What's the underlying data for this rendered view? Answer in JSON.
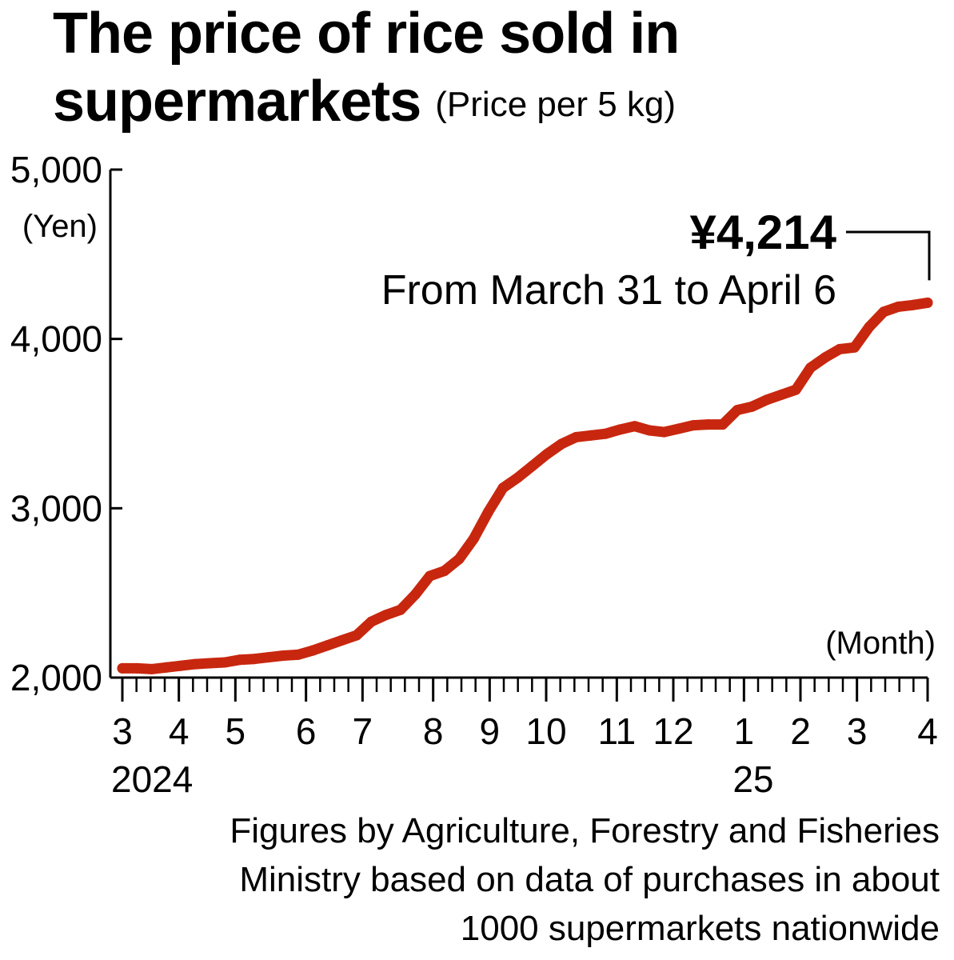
{
  "title": {
    "main_line1": "The price of rice sold in",
    "main_line2": "supermarkets",
    "subtitle": "(Price per 5 kg)"
  },
  "annotation": {
    "value": "¥4,214",
    "period": "From March 31 to April 6"
  },
  "source": {
    "line1": "Figures by Agriculture, Forestry and Fisheries",
    "line2": "Ministry based on data of purchases in about",
    "line3": "1000 supermarkets nationwide"
  },
  "colors": {
    "line": "#c8270f",
    "axis": "#000000"
  },
  "chart_data": {
    "type": "line",
    "title": "The price of rice sold in supermarkets",
    "subtitle": "(Price per 5 kg)",
    "ylabel": "(Yen)",
    "xlabel": "(Month)",
    "ylim": [
      2000,
      5000
    ],
    "yticks": [
      2000,
      3000,
      4000,
      5000
    ],
    "ytick_labels": [
      "2,000",
      "3,000",
      "4,000",
      "5,000"
    ],
    "grid": false,
    "month_ticks": [
      {
        "label": "3",
        "week": 0
      },
      {
        "label": "4",
        "week": 4
      },
      {
        "label": "5",
        "week": 8
      },
      {
        "label": "6",
        "week": 13
      },
      {
        "label": "7",
        "week": 17
      },
      {
        "label": "8",
        "week": 22
      },
      {
        "label": "9",
        "week": 26
      },
      {
        "label": "10",
        "week": 30
      },
      {
        "label": "11",
        "week": 35
      },
      {
        "label": "12",
        "week": 39
      },
      {
        "label": "1",
        "week": 44
      },
      {
        "label": "2",
        "week": 48
      },
      {
        "label": "3",
        "week": 52
      },
      {
        "label": "4",
        "week": 57
      }
    ],
    "year_labels": [
      {
        "label": "2024",
        "week": 0
      },
      {
        "label": "25",
        "week": 44
      }
    ],
    "series": [
      {
        "values": [
          2055,
          2055,
          2050,
          2060,
          2070,
          2080,
          2085,
          2090,
          2105,
          2110,
          2120,
          2130,
          2135,
          2160,
          2190,
          2220,
          2250,
          2330,
          2370,
          2400,
          2490,
          2600,
          2630,
          2700,
          2820,
          2980,
          3120,
          3180,
          3250,
          3320,
          3380,
          3420,
          3430,
          3440,
          3465,
          3485,
          3460,
          3450,
          3470,
          3490,
          3495,
          3495,
          3580,
          3600,
          3640,
          3670,
          3700,
          3830,
          3890,
          3940,
          3950,
          4070,
          4160,
          4190,
          4200,
          4214
        ]
      }
    ]
  }
}
